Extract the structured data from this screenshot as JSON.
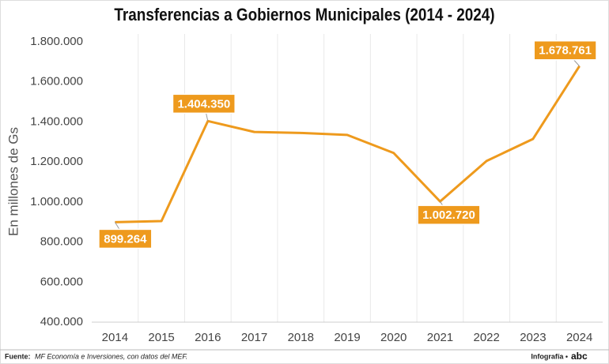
{
  "chart_data": {
    "type": "line",
    "title": "Transferencias a Gobiernos Municipales (2014 - 2024)",
    "y_label": "En millones de Gs",
    "categories": [
      "2014",
      "2015",
      "2016",
      "2017",
      "2018",
      "2019",
      "2020",
      "2021",
      "2022",
      "2023",
      "2024"
    ],
    "series": [
      {
        "name": "Transferencias",
        "color": "#ee9a1d",
        "values": [
          899264,
          905000,
          1404350,
          1350000,
          1345000,
          1335000,
          1245000,
          1002720,
          1205000,
          1315000,
          1678761
        ],
        "value_labels": [
          "899.264",
          null,
          "1.404.350",
          null,
          null,
          null,
          null,
          "1.002.720",
          null,
          null,
          "1.678.761"
        ]
      }
    ],
    "ylim": [
      400000,
      1800000
    ],
    "yticks": [
      {
        "value": 400000,
        "label": "400.000"
      },
      {
        "value": 600000,
        "label": "600.000"
      },
      {
        "value": 800000,
        "label": "800.000"
      },
      {
        "value": 1000000,
        "label": "1.000.000"
      },
      {
        "value": 1200000,
        "label": "1.200.000"
      },
      {
        "value": 1400000,
        "label": "1.400.000"
      },
      {
        "value": 1600000,
        "label": "1.600.000"
      },
      {
        "value": 1800000,
        "label": "1.800.000"
      }
    ],
    "source_label": "Fuente:",
    "source": "MF Economía e Inversiones, con datos del MEF.",
    "credit": "Infografía •",
    "logo": "abc"
  }
}
